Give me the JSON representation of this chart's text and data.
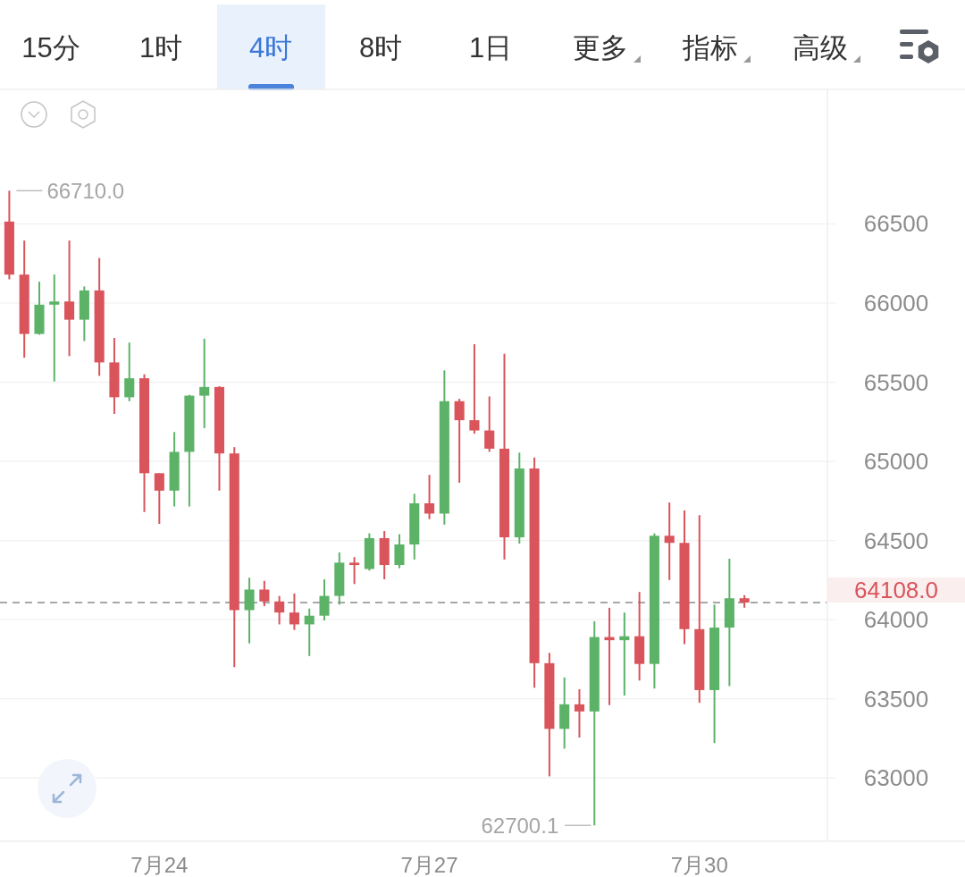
{
  "chart_data": [
    {
      "type": "other",
      "annotations": [
        "15分",
        "1时",
        "4时",
        "8时",
        "1日",
        "更多",
        "指标",
        "高级"
      ]
    },
    {
      "type": "candlestick",
      "categories": [
        null,
        null,
        null,
        null,
        null,
        null,
        null,
        null,
        null,
        null,
        "7月24",
        null,
        null,
        null,
        null,
        null,
        null,
        null,
        null,
        null,
        null,
        null,
        null,
        null,
        null,
        null,
        null,
        null,
        "7月27",
        null,
        null,
        null,
        null,
        null,
        null,
        null,
        null,
        null,
        null,
        null,
        null,
        null,
        null,
        null,
        null,
        null,
        "7月30",
        null,
        null,
        null
      ],
      "ohlc": [
        [
          66515,
          66710,
          66150,
          66180
        ],
        [
          66180,
          66395,
          65655,
          65805
        ],
        [
          65805,
          66135,
          65800,
          65990
        ],
        [
          65990,
          66180,
          65505,
          66010
        ],
        [
          66010,
          66395,
          65665,
          65895
        ],
        [
          65895,
          66105,
          65760,
          66080
        ],
        [
          66080,
          66285,
          65540,
          65625
        ],
        [
          65625,
          65780,
          65300,
          65405
        ],
        [
          65405,
          65750,
          65380,
          65525
        ],
        [
          65525,
          65550,
          64680,
          64925
        ],
        [
          64925,
          64925,
          64605,
          64815
        ],
        [
          64815,
          65185,
          64715,
          65060
        ],
        [
          65060,
          65420,
          64715,
          65415
        ],
        [
          65415,
          65775,
          65210,
          65470
        ],
        [
          65470,
          65475,
          64815,
          65050
        ],
        [
          65050,
          65090,
          63700,
          64060
        ],
        [
          64060,
          64265,
          63850,
          64190
        ],
        [
          64190,
          64245,
          64085,
          64115
        ],
        [
          64115,
          64150,
          63970,
          64045
        ],
        [
          64045,
          64165,
          63935,
          63970
        ],
        [
          63970,
          64070,
          63770,
          64025
        ],
        [
          64025,
          64255,
          63995,
          64150
        ],
        [
          64150,
          64425,
          64095,
          64360
        ],
        [
          64360,
          64395,
          64225,
          64345
        ],
        [
          64320,
          64545,
          64310,
          64515
        ],
        [
          64515,
          64560,
          64255,
          64345
        ],
        [
          64345,
          64540,
          64325,
          64475
        ],
        [
          64475,
          64795,
          64380,
          64735
        ],
        [
          64735,
          64915,
          64635,
          64670
        ],
        [
          64670,
          65575,
          64600,
          65380
        ],
        [
          65380,
          65395,
          64865,
          65260
        ],
        [
          65260,
          65740,
          65175,
          65195
        ],
        [
          65195,
          65410,
          65060,
          65080
        ],
        [
          65080,
          65680,
          64380,
          64520
        ],
        [
          64520,
          65055,
          64480,
          64955
        ],
        [
          64955,
          65025,
          63570,
          63725
        ],
        [
          63725,
          63790,
          63010,
          63310
        ],
        [
          63310,
          63635,
          63185,
          63465
        ],
        [
          63465,
          63560,
          63255,
          63420
        ],
        [
          63420,
          63990,
          62700.1,
          63890
        ],
        [
          63890,
          64075,
          63460,
          63870
        ],
        [
          63870,
          64045,
          63520,
          63895
        ],
        [
          63895,
          64175,
          63615,
          63720
        ],
        [
          63720,
          64545,
          63565,
          64530
        ],
        [
          64530,
          64740,
          64250,
          64485
        ],
        [
          64485,
          64690,
          63845,
          63940
        ],
        [
          63940,
          64660,
          63475,
          63555
        ],
        [
          63555,
          64095,
          63220,
          63950
        ],
        [
          63950,
          64385,
          63580,
          64135
        ],
        [
          64135,
          64155,
          64075,
          64108
        ]
      ],
      "colors": [
        "#d9545b",
        "#d9545b",
        "#5cb368",
        "#5cb368",
        "#d9545b",
        "#5cb368",
        "#d9545b",
        "#d9545b",
        "#5cb368",
        "#d9545b",
        "#d9545b",
        "#5cb368",
        "#5cb368",
        "#5cb368",
        "#d9545b",
        "#d9545b",
        "#5cb368",
        "#d9545b",
        "#d9545b",
        "#d9545b",
        "#5cb368",
        "#5cb368",
        "#5cb368",
        "#d9545b",
        "#5cb368",
        "#d9545b",
        "#5cb368",
        "#5cb368",
        "#d9545b",
        "#5cb368",
        "#d9545b",
        "#d9545b",
        "#d9545b",
        "#d9545b",
        "#5cb368",
        "#d9545b",
        "#d9545b",
        "#5cb368",
        "#d9545b",
        "#5cb368",
        "#d9545b",
        "#5cb368",
        "#d9545b",
        "#5cb368",
        "#d9545b",
        "#d9545b",
        "#d9545b",
        "#5cb368",
        "#5cb368",
        "#d9545b"
      ],
      "ylim": [
        62600,
        67350
      ],
      "yticks": [
        63000,
        63500,
        64000,
        64500,
        65000,
        65500,
        66000,
        66500
      ],
      "grid": "y",
      "ref_lines": [
        {
          "axis": "y",
          "value": 64108,
          "label": "64108.0",
          "color": "#a8a8a8",
          "line_style": "dashed"
        }
      ],
      "annotations": [
        "66710.0",
        "62700.1"
      ]
    }
  ]
}
